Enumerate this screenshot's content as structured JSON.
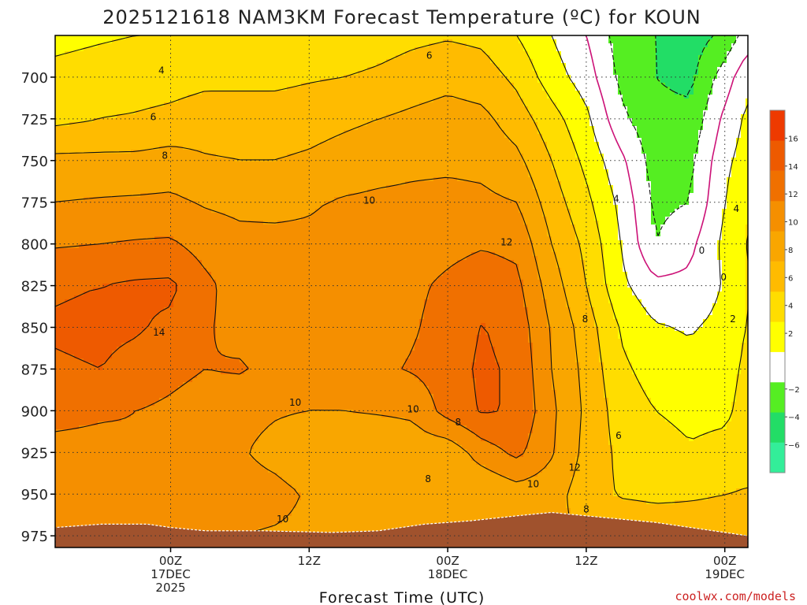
{
  "chart_data": {
    "type": "heatmap",
    "title": "2025121618 NAM3KM Forecast Temperature (ºC) for KOUN",
    "xlabel": "Forecast Time (UTC)",
    "ylabel": "",
    "credit": "coolwx.com/models",
    "y_axis": {
      "quantity": "pressure (hPa)",
      "inverted": true,
      "range": [
        675,
        982
      ],
      "ticks": [
        "700",
        "725",
        "750",
        "775",
        "800",
        "825",
        "850",
        "875",
        "900",
        "925",
        "950",
        "975"
      ]
    },
    "x_axis": {
      "range_hours": [
        -10,
        50
      ],
      "ticks": [
        {
          "hour": 0,
          "line1": "00Z",
          "line2": "17DEC",
          "line3": "2025"
        },
        {
          "hour": 12,
          "line1": "12Z",
          "line2": "",
          "line3": ""
        },
        {
          "hour": 24,
          "line1": "00Z",
          "line2": "18DEC",
          "line3": ""
        },
        {
          "hour": 36,
          "line1": "12Z",
          "line2": "",
          "line3": ""
        },
        {
          "hour": 48,
          "line1": "00Z",
          "line2": "19DEC",
          "line3": ""
        }
      ]
    },
    "grid": true,
    "colorbar": {
      "placement": "right",
      "levels": [
        {
          "from": -8,
          "to": -6,
          "color": "#33ee99"
        },
        {
          "from": -6,
          "to": -4,
          "color": "#22dd66"
        },
        {
          "from": -4,
          "to": -2,
          "color": "#55ee22"
        },
        {
          "from": -2,
          "to": 2,
          "color": "#ffffff"
        },
        {
          "from": 2,
          "to": 4,
          "color": "#ffff00"
        },
        {
          "from": 4,
          "to": 6,
          "color": "#ffdd00"
        },
        {
          "from": 6,
          "to": 8,
          "color": "#ffbb00"
        },
        {
          "from": 8,
          "to": 10,
          "color": "#f9a600"
        },
        {
          "from": 10,
          "to": 12,
          "color": "#f58f00"
        },
        {
          "from": 12,
          "to": 14,
          "color": "#f07000"
        },
        {
          "from": 14,
          "to": 16,
          "color": "#ee5a00"
        },
        {
          "from": 16,
          "to": 18,
          "color": "#ee3a00"
        }
      ],
      "labels": [
        "16",
        "14",
        "12",
        "10",
        "8",
        "6",
        "4",
        "2",
        "−2",
        "−4",
        "−6"
      ],
      "label_values": [
        16,
        14,
        12,
        10,
        8,
        6,
        4,
        2,
        -2,
        -4,
        -6
      ]
    },
    "terrain_color": "#a0522d",
    "zero_contour_color": "#cc1177",
    "field": {
      "hours": [
        -10,
        -6,
        -3,
        0,
        3,
        6,
        9,
        12,
        15,
        18,
        21,
        24,
        27,
        30,
        33,
        36,
        39,
        42,
        45,
        48,
        50
      ],
      "levels": [
        675,
        700,
        725,
        750,
        775,
        800,
        825,
        850,
        875,
        900,
        925,
        950,
        975
      ],
      "temperature_c": [
        [
          3.5,
          3.8,
          4.0,
          4.0,
          4.0,
          4.0,
          4.0,
          4.2,
          4.5,
          5.0,
          5.5,
          5.8,
          5.5,
          4.0,
          2.0,
          0.0,
          -3.0,
          -4.0,
          -5.0,
          -3.5,
          -1.0
        ],
        [
          4.5,
          4.8,
          5.0,
          5.2,
          5.5,
          5.5,
          5.5,
          5.8,
          6.0,
          6.4,
          7.0,
          7.4,
          7.0,
          5.5,
          3.0,
          1.0,
          -2.5,
          -4.0,
          -4.5,
          -1.0,
          1.5
        ],
        [
          5.5,
          6.0,
          6.2,
          6.5,
          7.0,
          7.0,
          7.0,
          7.2,
          7.6,
          8.0,
          8.4,
          8.8,
          8.5,
          7.0,
          4.8,
          2.5,
          -1.5,
          -3.5,
          -3.5,
          0.5,
          2.5
        ],
        [
          8.5,
          8.5,
          8.5,
          8.8,
          8.2,
          8.0,
          8.0,
          8.3,
          8.8,
          9.2,
          9.5,
          9.6,
          9.5,
          8.5,
          6.0,
          3.5,
          0.5,
          -3.0,
          -2.5,
          1.5,
          3.0
        ],
        [
          10.0,
          10.2,
          10.3,
          10.4,
          9.8,
          9.5,
          9.5,
          9.8,
          10.2,
          10.4,
          10.5,
          10.6,
          10.4,
          10.0,
          7.0,
          4.5,
          1.5,
          -2.5,
          -2.0,
          2.0,
          3.8
        ],
        [
          11.8,
          12.0,
          12.2,
          12.3,
          11.2,
          10.6,
          10.5,
          10.4,
          10.6,
          10.8,
          11.0,
          11.4,
          11.8,
          11.5,
          8.0,
          5.5,
          2.0,
          -2.0,
          -0.5,
          2.5,
          4.2
        ],
        [
          13.8,
          14.0,
          14.3,
          14.4,
          12.5,
          11.0,
          11.2,
          10.6,
          10.8,
          11.0,
          11.6,
          12.4,
          13.2,
          12.5,
          9.0,
          6.0,
          2.5,
          0.5,
          0.5,
          2.2,
          4.0
        ],
        [
          14.2,
          14.4,
          14.2,
          13.6,
          12.2,
          11.4,
          11.2,
          10.8,
          10.7,
          11.2,
          11.8,
          12.8,
          14.1,
          13.2,
          9.8,
          7.0,
          3.8,
          2.2,
          1.8,
          2.6,
          4.2
        ],
        [
          13.8,
          14.0,
          13.4,
          12.6,
          12.0,
          12.2,
          11.4,
          10.6,
          11.0,
          11.6,
          12.2,
          13.0,
          14.4,
          13.6,
          10.0,
          7.4,
          4.4,
          3.2,
          2.6,
          3.2,
          4.5
        ],
        [
          12.5,
          12.2,
          12.0,
          11.6,
          11.0,
          10.6,
          10.2,
          10.0,
          10.0,
          10.2,
          10.4,
          12.8,
          14.2,
          13.8,
          10.4,
          7.6,
          5.0,
          4.0,
          3.5,
          3.6,
          4.8
        ],
        [
          11.5,
          11.5,
          11.8,
          11.2,
          10.4,
          10.2,
          9.4,
          8.6,
          8.0,
          8.2,
          8.8,
          8.6,
          11.0,
          12.5,
          10.2,
          7.4,
          5.5,
          4.8,
          4.2,
          4.6,
          5.0
        ],
        [
          11.6,
          12.0,
          11.2,
          10.8,
          10.6,
          10.8,
          10.6,
          9.8,
          9.2,
          9.4,
          8.8,
          8.6,
          8.0,
          9.0,
          8.8,
          7.0,
          5.8,
          5.6,
          5.8,
          6.0,
          6.2
        ],
        [
          11.5,
          12.0,
          11.6,
          10.4,
          10.3,
          10.0,
          9.8,
          9.6,
          9.4,
          9.2,
          9.0,
          8.8,
          8.6,
          8.4,
          8.2,
          8.0,
          7.8,
          7.4,
          7.0,
          6.8,
          6.5
        ]
      ]
    },
    "terrain_surface_hpa": [
      {
        "hour": -10,
        "p": 970
      },
      {
        "hour": -6,
        "p": 968
      },
      {
        "hour": -2,
        "p": 968
      },
      {
        "hour": 0,
        "p": 970
      },
      {
        "hour": 3,
        "p": 972
      },
      {
        "hour": 8,
        "p": 972
      },
      {
        "hour": 14,
        "p": 973
      },
      {
        "hour": 18,
        "p": 972
      },
      {
        "hour": 22,
        "p": 968
      },
      {
        "hour": 26,
        "p": 966
      },
      {
        "hour": 30,
        "p": 963
      },
      {
        "hour": 33,
        "p": 961
      },
      {
        "hour": 36,
        "p": 963
      },
      {
        "hour": 39,
        "p": 965
      },
      {
        "hour": 42,
        "p": 967
      },
      {
        "hour": 45,
        "p": 970
      },
      {
        "hour": 48,
        "p": 973
      },
      {
        "hour": 50,
        "p": 975
      }
    ],
    "contour_labels": [
      {
        "text": "4",
        "hour": -0.8,
        "p": 696
      },
      {
        "text": "6",
        "hour": -1.5,
        "p": 724
      },
      {
        "text": "8",
        "hour": -0.5,
        "p": 747
      },
      {
        "text": "10",
        "hour": 17.2,
        "p": 774
      },
      {
        "text": "6",
        "hour": 22.4,
        "p": 687
      },
      {
        "text": "12",
        "hour": 29.1,
        "p": 799
      },
      {
        "text": "14",
        "hour": -1.0,
        "p": 853
      },
      {
        "text": "10",
        "hour": 10.8,
        "p": 895
      },
      {
        "text": "10",
        "hour": 21.0,
        "p": 899
      },
      {
        "text": "8",
        "hour": 24.9,
        "p": 907
      },
      {
        "text": "8",
        "hour": 22.3,
        "p": 941
      },
      {
        "text": "10",
        "hour": 9.7,
        "p": 965
      },
      {
        "text": "12",
        "hour": 35.0,
        "p": 934
      },
      {
        "text": "10",
        "hour": 31.4,
        "p": 944
      },
      {
        "text": "8",
        "hour": 36.0,
        "p": 959
      },
      {
        "text": "6",
        "hour": 38.8,
        "p": 915
      },
      {
        "text": "8",
        "hour": 35.9,
        "p": 845
      },
      {
        "text": "4",
        "hour": 38.6,
        "p": 773
      },
      {
        "text": "0",
        "hour": 46.0,
        "p": 804
      },
      {
        "text": "0",
        "hour": 47.9,
        "p": 820
      },
      {
        "text": "2",
        "hour": 48.7,
        "p": 845
      },
      {
        "text": "4",
        "hour": 49.0,
        "p": 779
      }
    ]
  }
}
